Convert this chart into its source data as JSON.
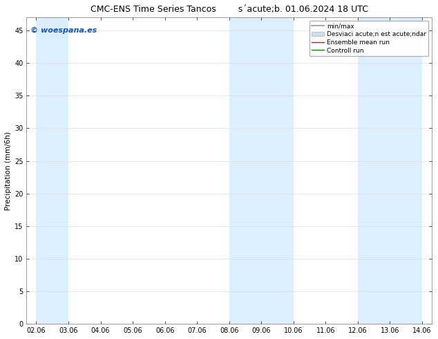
{
  "title_part1": "CMC-ENS Time Series Tancos",
  "title_part2": "s´acute;b. 01.06.2024 18 UTC",
  "ylabel": "Precipitation (mm/6h)",
  "xlabel": "",
  "ylim": [
    0,
    47
  ],
  "yticks": [
    0,
    5,
    10,
    15,
    20,
    25,
    30,
    35,
    40,
    45
  ],
  "xtick_labels": [
    "02.06",
    "03.06",
    "04.06",
    "05.06",
    "06.06",
    "07.06",
    "08.06",
    "09.06",
    "10.06",
    "11.06",
    "12.06",
    "13.06",
    "14.06"
  ],
  "xtick_positions": [
    0,
    1,
    2,
    3,
    4,
    5,
    6,
    7,
    8,
    9,
    10,
    11,
    12
  ],
  "shade_bands": [
    {
      "x_start": 0,
      "x_end": 1
    },
    {
      "x_start": 6,
      "x_end": 8
    },
    {
      "x_start": 10,
      "x_end": 12
    }
  ],
  "shade_color": "#ddeeff",
  "background_color": "#ffffff",
  "watermark_text": "© woespana.es",
  "watermark_color": "#1155bb",
  "legend_label_minmax": "min/max",
  "legend_label_std": "Desviaci acute;n est acute;ndar",
  "legend_label_ensemble": "Ensemble mean run",
  "legend_label_control": "Controll run",
  "legend_color_minmax": "#aaaaaa",
  "legend_color_std": "#cce0f5",
  "legend_color_ensemble": "#ff0000",
  "legend_color_control": "#008800"
}
